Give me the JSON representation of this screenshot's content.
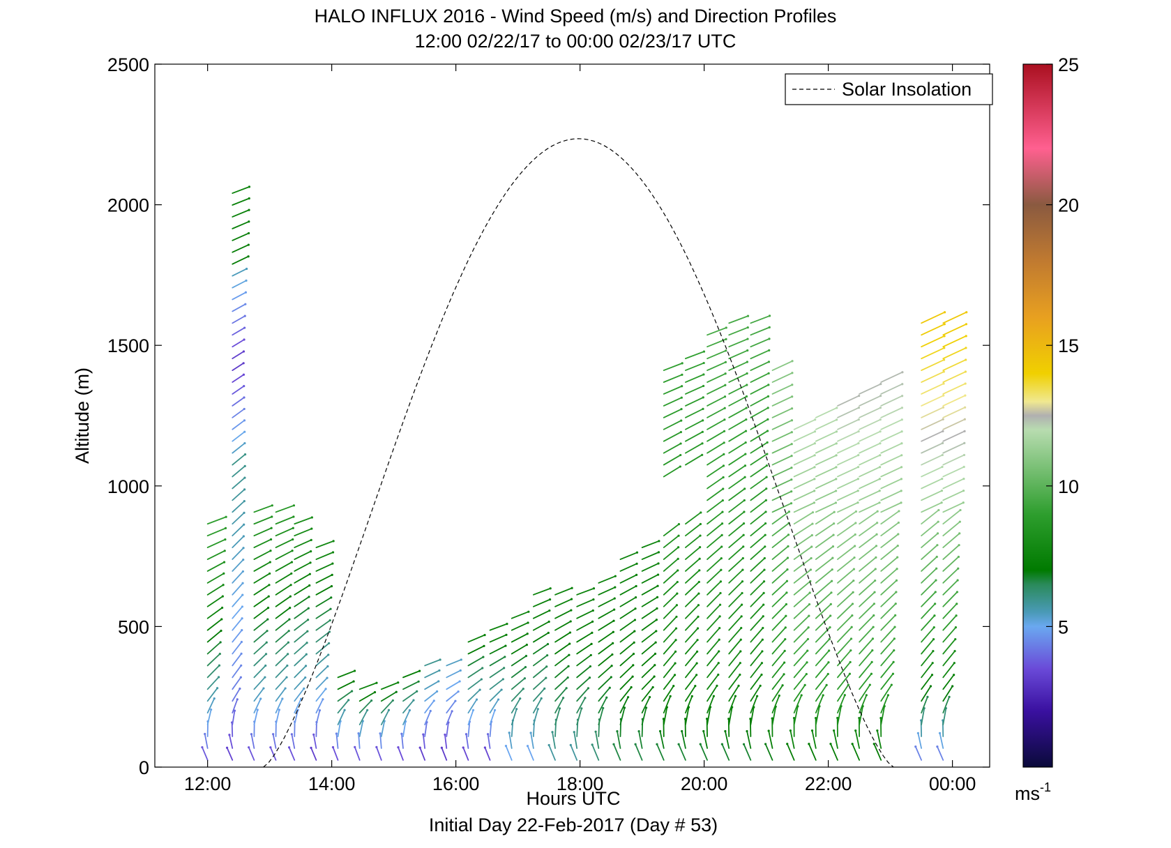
{
  "chart_data": {
    "type": "wind-barb-profile",
    "title": "HALO INFLUX 2016 - Wind Speed (m/s) and Direction Profiles",
    "subtitle": "12:00 02/22/17 to 00:00 02/23/17  UTC",
    "xlabel": "Hours UTC",
    "ylabel": "Altitude (m)",
    "footer": "Initial Day 22-Feb-2017 (Day # 53)",
    "xlim": [
      11.15,
      24.6
    ],
    "ylim": [
      0,
      2500
    ],
    "x_ticks": [
      {
        "value": 12,
        "label": "12:00"
      },
      {
        "value": 14,
        "label": "14:00"
      },
      {
        "value": 16,
        "label": "16:00"
      },
      {
        "value": 18,
        "label": "18:00"
      },
      {
        "value": 20,
        "label": "20:00"
      },
      {
        "value": 22,
        "label": "22:00"
      },
      {
        "value": 24,
        "label": "00:00"
      }
    ],
    "y_ticks": [
      0,
      500,
      1000,
      1500,
      2000,
      2500
    ],
    "legend": {
      "label": "Solar Insolation",
      "position": "top-right",
      "style": "dashed"
    },
    "colorbar": {
      "min": 0,
      "max": 25,
      "ticks": [
        5,
        10,
        15,
        20,
        25
      ],
      "unit_label": "ms",
      "unit_exponent": "-1",
      "stops": [
        [
          0,
          "#0a0a3a"
        ],
        [
          2,
          "#3a10a0"
        ],
        [
          3.5,
          "#6a4ad8"
        ],
        [
          5,
          "#6aa8f0"
        ],
        [
          5.5,
          "#4a9ab8"
        ],
        [
          6.5,
          "#2a8a5a"
        ],
        [
          7,
          "#007a00"
        ],
        [
          9,
          "#2e9e2e"
        ],
        [
          12,
          "#b8dcb0"
        ],
        [
          12.5,
          "#b0b0b0"
        ],
        [
          13,
          "#f0e890"
        ],
        [
          14,
          "#f0d000"
        ],
        [
          16,
          "#e8a020"
        ],
        [
          18,
          "#c07a30"
        ],
        [
          20,
          "#8a5a40"
        ],
        [
          22,
          "#ff6090"
        ],
        [
          25,
          "#aa1020"
        ]
      ]
    },
    "solar_insolation": {
      "sunrise_hour": 12.9,
      "sunset_hour": 23.05,
      "peak_hour": 17.98,
      "peak_altitude": 2235
    },
    "profiles": [
      {
        "hour": 12.0,
        "top": 880,
        "start": 0,
        "speed_top": 9.0,
        "speed_bottom": 3.0
      },
      {
        "hour": 12.4,
        "top": 2080,
        "start": 0,
        "speed_top": 7.5,
        "speed_bottom": 3.0,
        "low_speed_band": [
          1100,
          1750
        ]
      },
      {
        "hour": 12.75,
        "top": 910,
        "start": 0,
        "speed_top": 8.5,
        "speed_bottom": 3.0
      },
      {
        "hour": 13.1,
        "top": 910,
        "start": 0,
        "speed_top": 8.5,
        "speed_bottom": 3.0
      },
      {
        "hour": 13.4,
        "top": 870,
        "start": 0,
        "speed_top": 8.0,
        "speed_bottom": 3.0
      },
      {
        "hour": 13.75,
        "top": 790,
        "start": 0,
        "speed_top": 7.8,
        "speed_bottom": 2.5
      },
      {
        "hour": 14.1,
        "top": 330,
        "start": 0,
        "speed_top": 7.5,
        "speed_bottom": 2.5
      },
      {
        "hour": 14.45,
        "top": 280,
        "start": 0,
        "speed_top": 7.5,
        "speed_bottom": 2.5
      },
      {
        "hour": 14.8,
        "top": 290,
        "start": 0,
        "speed_top": 7.5,
        "speed_bottom": 2.5
      },
      {
        "hour": 15.15,
        "top": 330,
        "start": 0,
        "speed_top": 7.2,
        "speed_bottom": 2.5
      },
      {
        "hour": 15.5,
        "top": 370,
        "start": 0,
        "speed_top": 6.0,
        "speed_bottom": 2.5
      },
      {
        "hour": 15.85,
        "top": 380,
        "start": 0,
        "speed_top": 5.5,
        "speed_bottom": 2.5
      },
      {
        "hour": 16.2,
        "top": 480,
        "start": 0,
        "speed_top": 7.5,
        "speed_bottom": 2.5
      },
      {
        "hour": 16.55,
        "top": 490,
        "start": 0,
        "speed_top": 7.5,
        "speed_bottom": 2.5
      },
      {
        "hour": 16.9,
        "top": 550,
        "start": 0,
        "speed_top": 7.5,
        "speed_bottom": 4.5
      },
      {
        "hour": 17.25,
        "top": 620,
        "start": 0,
        "speed_top": 7.5,
        "speed_bottom": 4.5
      },
      {
        "hour": 17.6,
        "top": 640,
        "start": 0,
        "speed_top": 7.5,
        "speed_bottom": 5.5
      },
      {
        "hour": 17.95,
        "top": 620,
        "start": 0,
        "speed_top": 7.5,
        "speed_bottom": 5.5
      },
      {
        "hour": 18.3,
        "top": 690,
        "start": 0,
        "speed_top": 7.5,
        "speed_bottom": 6.0
      },
      {
        "hour": 18.65,
        "top": 780,
        "start": 0,
        "speed_top": 7.5,
        "speed_bottom": 6.5
      },
      {
        "hour": 19.0,
        "top": 800,
        "start": 0,
        "speed_top": 7.5,
        "speed_bottom": 6.5
      },
      {
        "hour": 19.35,
        "top": 1450,
        "start": 0,
        "speed_top": 9.0,
        "speed_bottom": 6.5,
        "gap": [
          860,
          1010
        ]
      },
      {
        "hour": 19.7,
        "top": 1480,
        "start": 0,
        "speed_top": 9.0,
        "speed_bottom": 6.5,
        "gap": [
          900,
          1050
        ]
      },
      {
        "hour": 20.05,
        "top": 1570,
        "start": 0,
        "speed_top": 9.5,
        "speed_bottom": 6.5
      },
      {
        "hour": 20.4,
        "top": 1600,
        "start": 0,
        "speed_top": 9.5,
        "speed_bottom": 6.5
      },
      {
        "hour": 20.75,
        "top": 1620,
        "start": 0,
        "speed_top": 9.5,
        "speed_bottom": 6.5
      },
      {
        "hour": 21.1,
        "top": 1450,
        "start": 0,
        "speed_top": 11.0,
        "speed_bottom": 6.5
      },
      {
        "hour": 21.45,
        "top": 1220,
        "start": 0,
        "speed_top": 12.0,
        "speed_bottom": 6.5
      },
      {
        "hour": 21.8,
        "top": 1270,
        "start": 0,
        "speed_top": 12.0,
        "speed_bottom": 6.5
      },
      {
        "hour": 22.15,
        "top": 1320,
        "start": 0,
        "speed_top": 12.5,
        "speed_bottom": 6.5
      },
      {
        "hour": 22.5,
        "top": 1360,
        "start": 0,
        "speed_top": 12.5,
        "speed_bottom": 6.5
      },
      {
        "hour": 22.85,
        "top": 1410,
        "start": 0,
        "speed_top": 12.5,
        "speed_bottom": 6.5
      },
      {
        "hour": 23.5,
        "top": 1620,
        "start": 0,
        "speed_top": 14.5,
        "speed_bottom": 3.5
      },
      {
        "hour": 23.85,
        "top": 1620,
        "start": 0,
        "speed_top": 14.5,
        "speed_bottom": 3.5
      }
    ]
  }
}
